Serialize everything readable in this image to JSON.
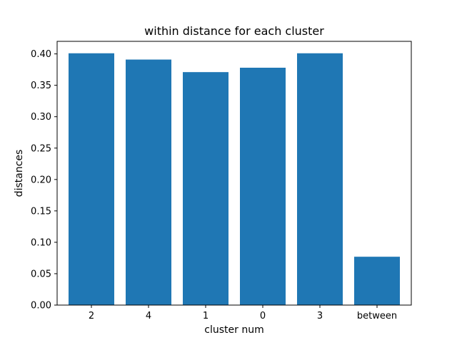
{
  "chart_data": {
    "type": "bar",
    "title": "within distance for each cluster",
    "xlabel": "cluster num",
    "ylabel": "distances",
    "categories": [
      "2",
      "4",
      "1",
      "0",
      "3",
      "between"
    ],
    "values": [
      0.401,
      0.391,
      0.371,
      0.378,
      0.401,
      0.077
    ],
    "ylim": [
      0,
      0.42
    ],
    "yticks": [
      "0.00",
      "0.05",
      "0.10",
      "0.15",
      "0.20",
      "0.25",
      "0.30",
      "0.35",
      "0.40"
    ],
    "grid": false,
    "legend": "none",
    "bar_color": "#1f77b4"
  }
}
